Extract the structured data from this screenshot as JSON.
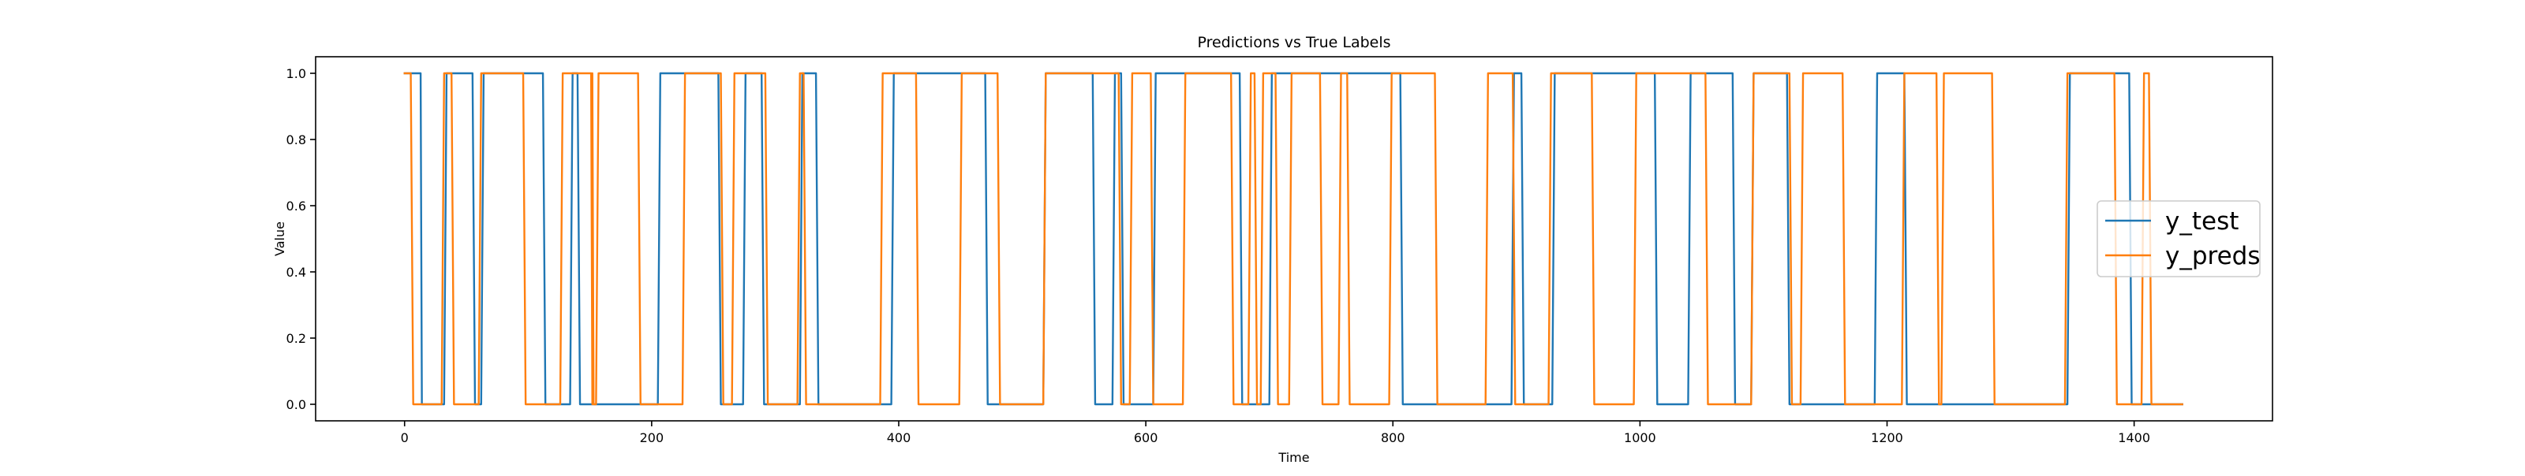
{
  "chart_data": {
    "type": "line",
    "title": "Predictions vs True Labels",
    "xlabel": "Time",
    "ylabel": "Value",
    "xlim": [
      -72,
      1512
    ],
    "ylim": [
      -0.05,
      1.05
    ],
    "xticks": [
      0,
      200,
      400,
      600,
      800,
      1000,
      1200,
      1400
    ],
    "xtick_labels": [
      "0",
      "200",
      "400",
      "600",
      "800",
      "1000",
      "1200",
      "1400"
    ],
    "yticks": [
      0.0,
      0.2,
      0.4,
      0.6,
      0.8,
      1.0
    ],
    "ytick_labels": [
      "0.0",
      "0.2",
      "0.4",
      "0.6",
      "0.8",
      "1.0"
    ],
    "grid": false,
    "legend_position": "center-right",
    "legend": [
      "y_test",
      "y_preds"
    ],
    "series": [
      {
        "name": "y_test",
        "color": "#1f77b4",
        "x": [
          0,
          13,
          14,
          32,
          34,
          55,
          57,
          62,
          64,
          112,
          114,
          134,
          136,
          140,
          142,
          205,
          207,
          254,
          256,
          274,
          276,
          289,
          291,
          320,
          322,
          333,
          335,
          394,
          396,
          470,
          472,
          517,
          519,
          557,
          559,
          573,
          575,
          580,
          582,
          606,
          608,
          676,
          678,
          700,
          702,
          806,
          808,
          896,
          898,
          904,
          906,
          929,
          931,
          1012,
          1014,
          1039,
          1041,
          1075,
          1077,
          1090,
          1092,
          1119,
          1121,
          1190,
          1192,
          1214,
          1216,
          1346,
          1348,
          1396,
          1398,
          1439
        ],
        "y": [
          1,
          1,
          0,
          0,
          1,
          1,
          0,
          0,
          1,
          1,
          0,
          0,
          1,
          1,
          0,
          0,
          1,
          1,
          0,
          0,
          1,
          1,
          0,
          0,
          1,
          1,
          0,
          0,
          1,
          1,
          0,
          0,
          1,
          1,
          0,
          0,
          1,
          1,
          0,
          0,
          1,
          1,
          0,
          0,
          1,
          1,
          0,
          0,
          1,
          1,
          0,
          0,
          1,
          1,
          0,
          0,
          1,
          1,
          0,
          0,
          1,
          1,
          0,
          0,
          1,
          1,
          0,
          0,
          1,
          1,
          0,
          0
        ]
      },
      {
        "name": "y_preds",
        "color": "#ff7f0e",
        "x": [
          0,
          5,
          7,
          30,
          32,
          38,
          40,
          60,
          62,
          96,
          98,
          126,
          128,
          151,
          152,
          152,
          153,
          155,
          157,
          189,
          191,
          225,
          227,
          256,
          258,
          265,
          267,
          292,
          294,
          318,
          320,
          323,
          325,
          385,
          387,
          414,
          416,
          449,
          451,
          480,
          482,
          517,
          519,
          578,
          580,
          587,
          589,
          604,
          606,
          630,
          632,
          669,
          671,
          683,
          685,
          688,
          690,
          693,
          695,
          705,
          707,
          716,
          718,
          741,
          743,
          756,
          758,
          763,
          765,
          797,
          799,
          834,
          836,
          875,
          877,
          897,
          899,
          926,
          928,
          961,
          963,
          995,
          997,
          1053,
          1055,
          1090,
          1092,
          1121,
          1123,
          1130,
          1132,
          1164,
          1166,
          1212,
          1214,
          1240,
          1242,
          1244,
          1246,
          1285,
          1287,
          1344,
          1346,
          1384,
          1386,
          1406,
          1408,
          1412,
          1414,
          1439
        ],
        "y": [
          1,
          1,
          0,
          0,
          1,
          1,
          0,
          0,
          1,
          1,
          0,
          0,
          1,
          1,
          0,
          1,
          0,
          0,
          1,
          1,
          0,
          0,
          1,
          1,
          0,
          0,
          1,
          1,
          0,
          0,
          1,
          1,
          0,
          0,
          1,
          1,
          0,
          0,
          1,
          1,
          0,
          0,
          1,
          1,
          0,
          0,
          1,
          1,
          0,
          0,
          1,
          1,
          0,
          0,
          1,
          1,
          0,
          0,
          1,
          1,
          0,
          0,
          1,
          1,
          0,
          0,
          1,
          1,
          0,
          0,
          1,
          1,
          0,
          0,
          1,
          1,
          0,
          0,
          1,
          1,
          0,
          0,
          1,
          1,
          0,
          0,
          1,
          1,
          0,
          0,
          1,
          1,
          0,
          0,
          1,
          1,
          0,
          0,
          1,
          1,
          0,
          0,
          1,
          1,
          0,
          0,
          1,
          1,
          0,
          0
        ]
      }
    ]
  }
}
